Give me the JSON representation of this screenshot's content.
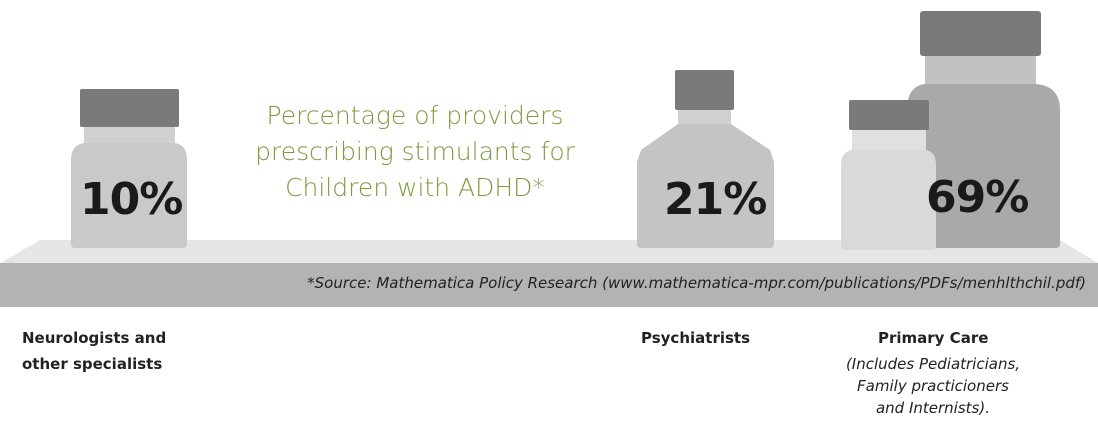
{
  "chart_data": {
    "type": "pictograph",
    "title_lines": [
      "Percentage of providers",
      "prescribing stimulants for",
      "Children with ADHD*"
    ],
    "categories": [
      "Neurologists and other specialists",
      "Psychiatrists",
      "Primary Care"
    ],
    "values": [
      10,
      21,
      69
    ],
    "value_labels": [
      "10%",
      "21%",
      "69%"
    ],
    "unit": "%"
  },
  "labels": {
    "neuro_line1": "Neurologists and",
    "neuro_line2": "other specialists",
    "psych": "Psychiatrists",
    "primary": "Primary Care",
    "primary_sub1": "(Includes Pediatricians,",
    "primary_sub2": "Family practicioners",
    "primary_sub3": "and Internists)."
  },
  "source": "*Source: Mathematica Policy Research (www.mathematica-mpr.com/publications/PDFs/menhlthchil.pdf)",
  "colors": {
    "title": "#7d9a3c",
    "cap": "#7a7a7a",
    "bottle_small": "#c9c9c9",
    "bottle_medium": "#c4c4c4",
    "bottle_large": "#a9a9a9",
    "bottle_light": "#d9d9d9",
    "shelf": "#b3b3b3"
  }
}
